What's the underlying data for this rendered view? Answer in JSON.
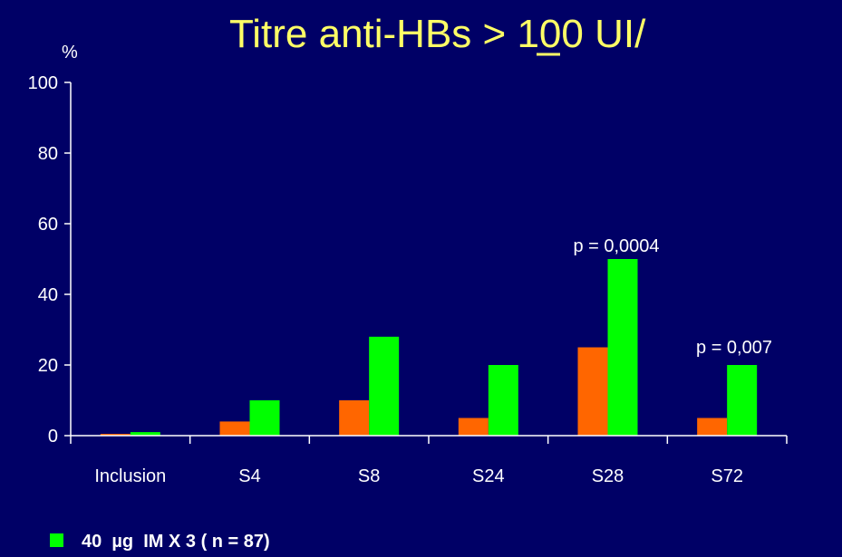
{
  "chart_data": {
    "type": "bar",
    "title": "Titre anti-HBs  > 100 UI/",
    "y_label": "%",
    "categories": [
      "Inclusion",
      "S4",
      "S8",
      "S24",
      "S28",
      "S72"
    ],
    "series": [
      {
        "color": "#ff6600",
        "values": [
          0.5,
          4,
          10,
          5,
          25,
          5
        ]
      },
      {
        "name": "40  µg  IM X 3 ( n = 87)",
        "color": "#00ff00",
        "values": [
          1,
          10,
          28,
          20,
          50,
          20
        ]
      }
    ],
    "ylim": [
      0,
      100
    ],
    "yticks": [
      0,
      20,
      40,
      60,
      80,
      100
    ],
    "annotations": [
      "p = 0,0004",
      "p = 0,007"
    ]
  }
}
